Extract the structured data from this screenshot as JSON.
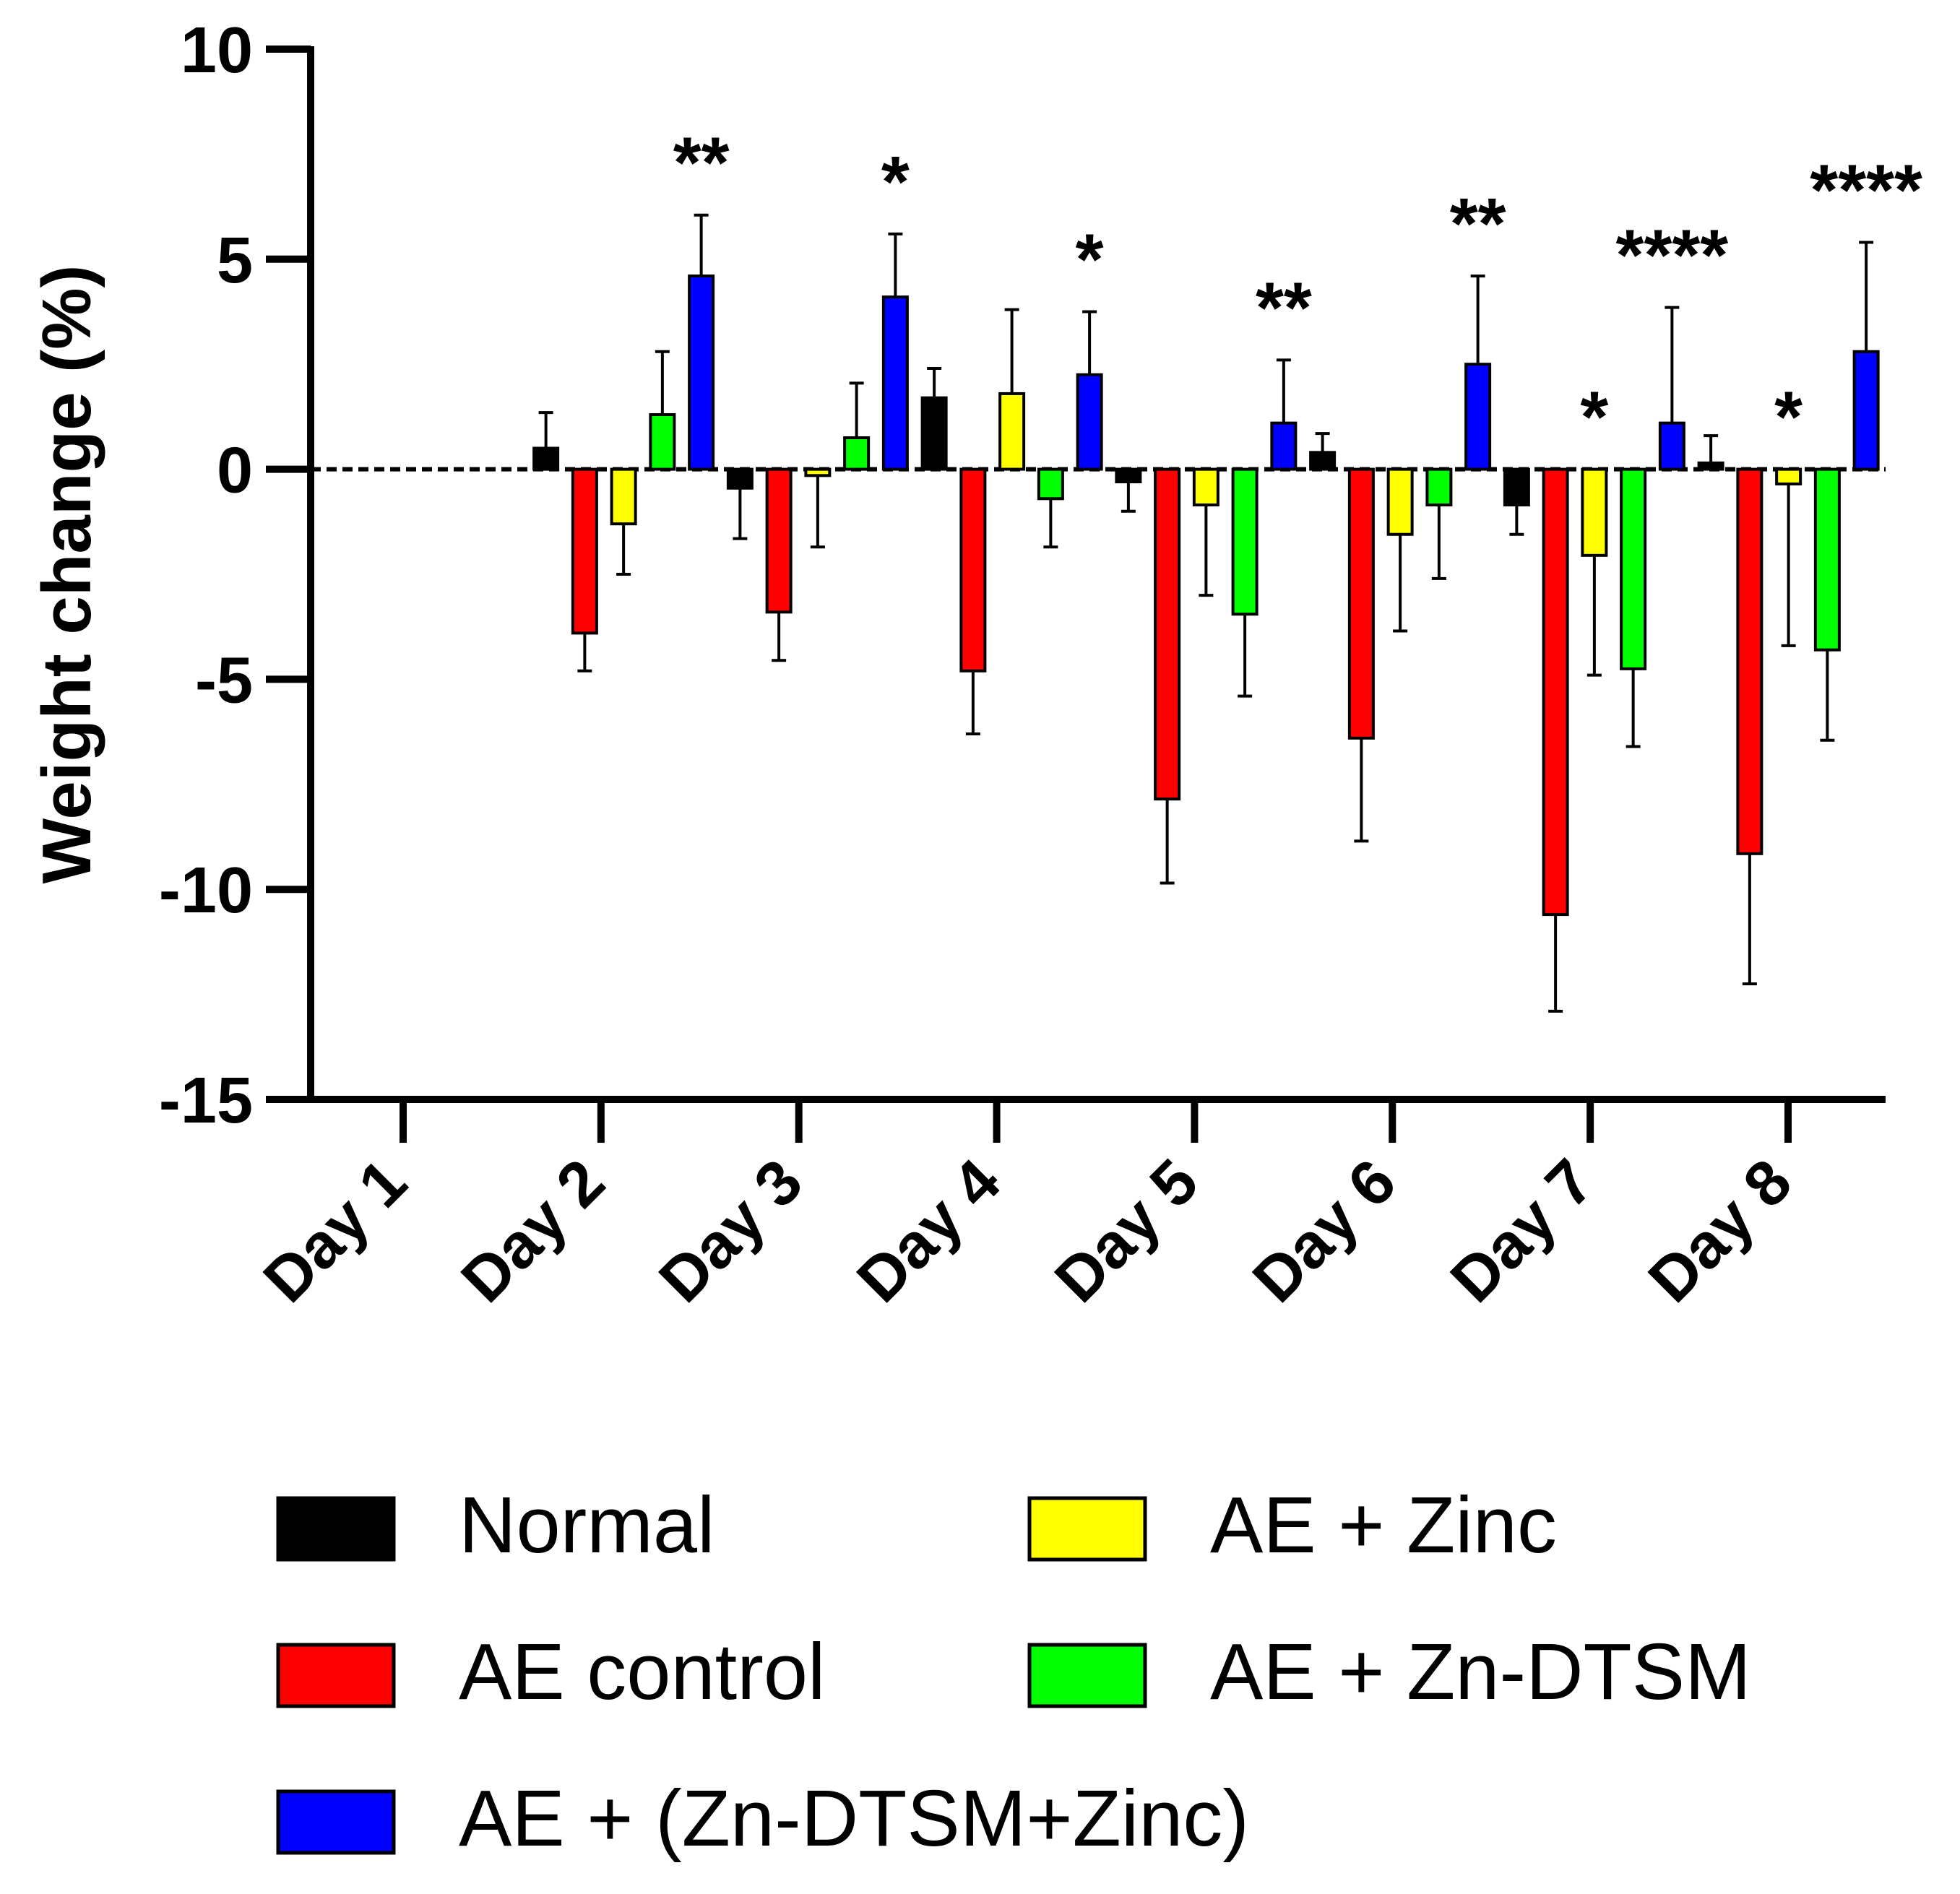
{
  "chart_data": {
    "type": "bar",
    "title": "",
    "xlabel": "",
    "ylabel": "Weight change (%)",
    "ylim": [
      -15,
      10
    ],
    "yticks": [
      "10",
      "5",
      "0",
      "-5",
      "-10",
      "-15"
    ],
    "grid": false,
    "legend_position": "bottom",
    "categories": [
      "Day 1",
      "Day 2",
      "Day 3",
      "Day 4",
      "Day 5",
      "Day 6",
      "Day 7",
      "Day 8"
    ],
    "series": [
      {
        "name": "Normal",
        "color": "#000000",
        "values": [
          0,
          0.5,
          -0.45,
          1.7,
          -0.3,
          0.4,
          -0.85,
          0.15
        ],
        "errors": [
          0,
          0.85,
          1.2,
          0.7,
          0.7,
          0.45,
          0.7,
          0.65
        ]
      },
      {
        "name": "AE control",
        "color": "#ff0000",
        "values": [
          0,
          -3.9,
          -3.4,
          -4.8,
          -7.85,
          -6.4,
          -10.6,
          -9.15
        ],
        "errors": [
          0,
          0.9,
          1.15,
          1.5,
          2.0,
          2.45,
          2.3,
          3.1
        ]
      },
      {
        "name": "AE + Zinc",
        "color": "#ffff00",
        "values": [
          0,
          -1.3,
          -0.15,
          1.8,
          -0.85,
          -1.55,
          -2.05,
          -0.35
        ],
        "errors": [
          0,
          1.2,
          1.7,
          2.0,
          2.15,
          2.3,
          2.85,
          3.85
        ]
      },
      {
        "name": "AE + Zn-DTSM",
        "color": "#00ff00",
        "values": [
          0,
          1.3,
          0.75,
          -0.7,
          -3.45,
          -0.85,
          -4.75,
          -4.3
        ],
        "errors": [
          0,
          1.5,
          1.3,
          1.15,
          1.95,
          1.75,
          1.85,
          2.15
        ]
      },
      {
        "name": "AE + (Zn-DTSM+Zinc)",
        "color": "#0000ff",
        "values": [
          0,
          4.6,
          4.1,
          2.25,
          1.1,
          2.5,
          1.1,
          2.8
        ],
        "errors": [
          0,
          1.45,
          1.5,
          1.5,
          1.5,
          2.1,
          2.75,
          2.6
        ]
      }
    ],
    "annotations": [
      {
        "category": "Day 2",
        "series": "AE + (Zn-DTSM+Zinc)",
        "text": "**"
      },
      {
        "category": "Day 3",
        "series": "AE + (Zn-DTSM+Zinc)",
        "text": "*"
      },
      {
        "category": "Day 4",
        "series": "AE + (Zn-DTSM+Zinc)",
        "text": "*"
      },
      {
        "category": "Day 5",
        "series": "AE + (Zn-DTSM+Zinc)",
        "text": "**"
      },
      {
        "category": "Day 6",
        "series": "AE + (Zn-DTSM+Zinc)",
        "text": "**"
      },
      {
        "category": "Day 7",
        "series": "AE + Zinc",
        "text": "*"
      },
      {
        "category": "Day 7",
        "series": "AE + (Zn-DTSM+Zinc)",
        "text": "****"
      },
      {
        "category": "Day 8",
        "series": "AE + Zinc",
        "text": "*"
      },
      {
        "category": "Day 8",
        "series": "AE + (Zn-DTSM+Zinc)",
        "text": "****"
      }
    ]
  }
}
